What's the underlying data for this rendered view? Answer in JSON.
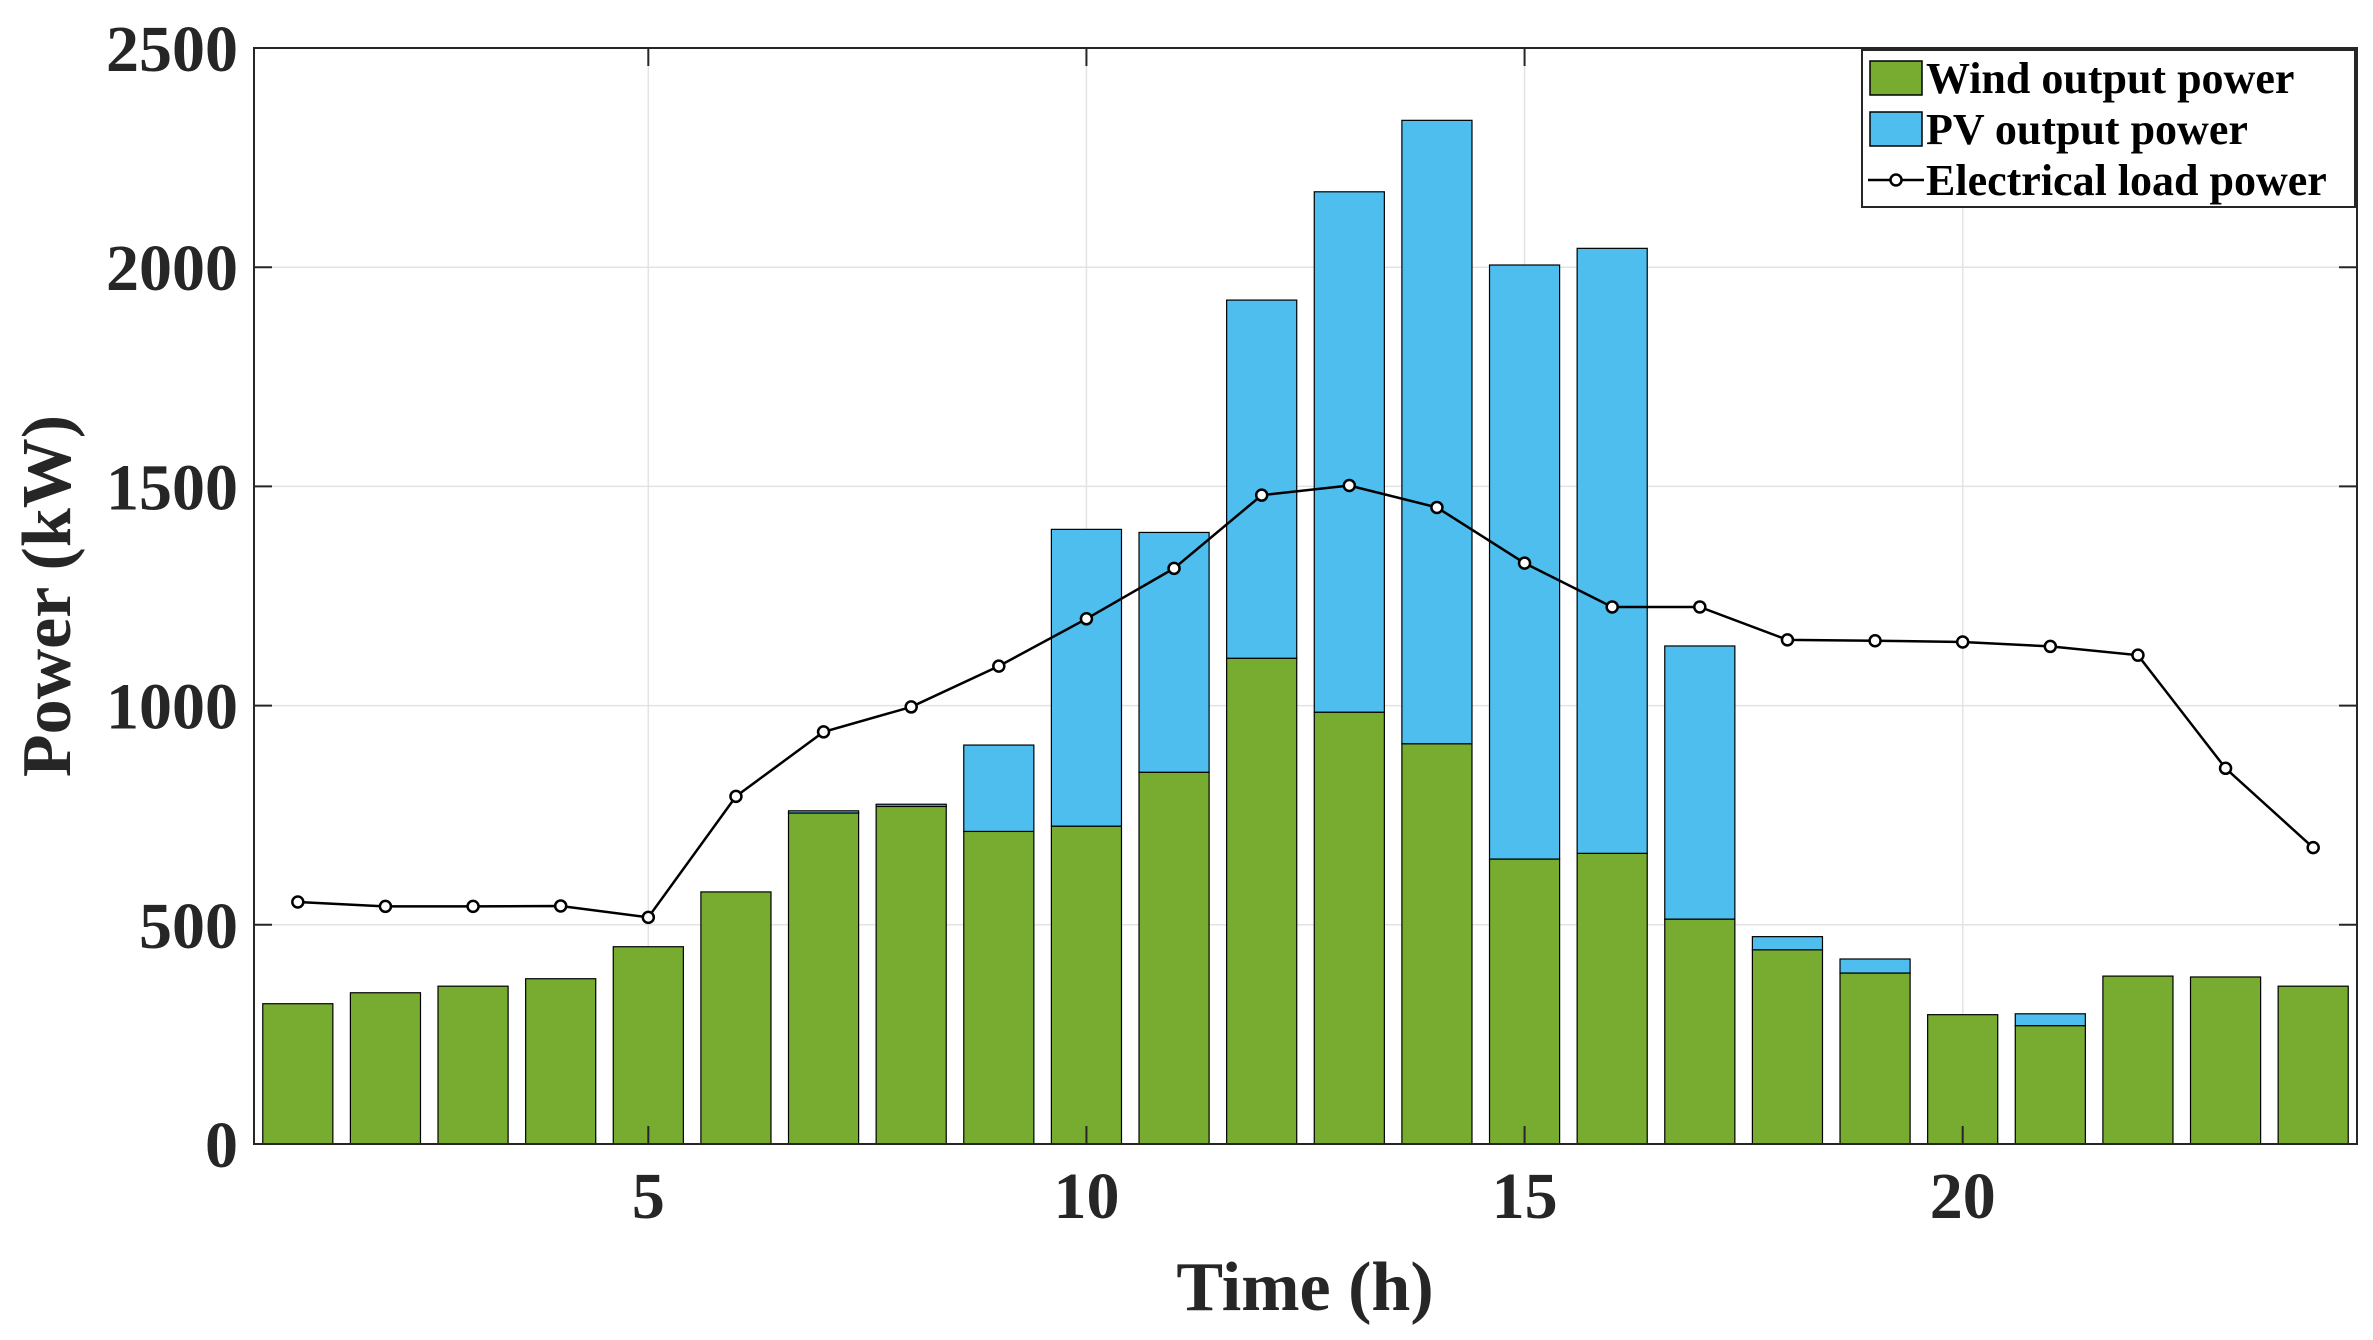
{
  "chart_data": {
    "type": "bar",
    "stacked": true,
    "title": "",
    "xlabel": "Time (h)",
    "ylabel": "Power (kW)",
    "xlim": [
      0.5,
      24.5
    ],
    "ylim": [
      0,
      2500
    ],
    "xticks": [
      5,
      10,
      15,
      20
    ],
    "yticks": [
      0,
      500,
      1000,
      1500,
      2000,
      2500
    ],
    "grid": true,
    "legend_position": "top-right",
    "x": [
      1,
      2,
      3,
      4,
      5,
      6,
      7,
      8,
      9,
      10,
      11,
      12,
      13,
      14,
      15,
      16,
      17,
      18,
      19,
      20,
      21,
      22,
      23,
      24
    ],
    "series": [
      {
        "name": "Wind output power",
        "kind": "bar",
        "color": "#77AC30",
        "values": [
          320,
          345,
          360,
          377,
          450,
          575,
          755,
          770,
          713,
          725,
          848,
          1108,
          985,
          913,
          650,
          663,
          513,
          443,
          390,
          295,
          270,
          383,
          381,
          360
        ]
      },
      {
        "name": "PV output power",
        "kind": "bar",
        "color": "#4DBEEE",
        "values": [
          0,
          0,
          0,
          0,
          0,
          0,
          5,
          5,
          197,
          677,
          547,
          817,
          1187,
          1422,
          1355,
          1380,
          623,
          30,
          32,
          0,
          27,
          0,
          0,
          0
        ]
      },
      {
        "name": "Electrical load power",
        "kind": "line",
        "color": "#000000",
        "marker": "circle",
        "values": [
          552,
          542,
          542,
          543,
          517,
          793,
          940,
          997,
          1090,
          1198,
          1313,
          1480,
          1502,
          1452,
          1325,
          1225,
          1225,
          1150,
          1148,
          1145,
          1135,
          1115,
          857,
          676
        ]
      }
    ]
  }
}
